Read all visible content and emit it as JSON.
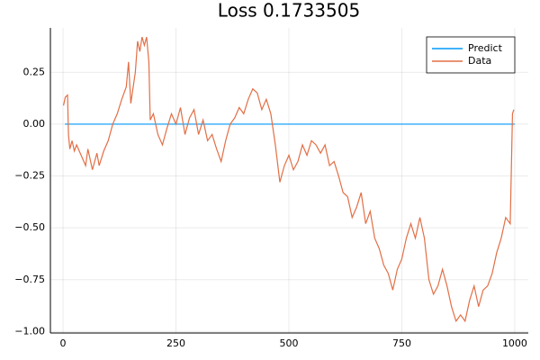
{
  "chart_data": {
    "type": "line",
    "title": "Loss 0.1733505",
    "xlim": [
      -28,
      1030
    ],
    "xticks": [
      0,
      250,
      500,
      750,
      1000
    ],
    "ylim": [
      -1.007,
      0.464
    ],
    "yticks": [
      {
        "value": 0.25,
        "label": "0.25"
      },
      {
        "value": 0,
        "label": "0.00"
      },
      {
        "value": -0.25,
        "label": "−0.25"
      },
      {
        "value": -0.5,
        "label": "−0.50"
      },
      {
        "value": -0.75,
        "label": "−0.75"
      },
      {
        "value": -1,
        "label": "−1.00"
      }
    ],
    "grid": true,
    "legend": "top-right",
    "series": [
      {
        "name": "Predict",
        "color": "#009af9",
        "x": [
          4,
          1000
        ],
        "values": [
          0,
          0
        ]
      },
      {
        "name": "Data",
        "color": "#e26f46",
        "x": [
          1,
          5,
          10,
          12,
          15,
          20,
          25,
          30,
          40,
          50,
          55,
          65,
          75,
          80,
          90,
          100,
          110,
          120,
          130,
          140,
          145,
          150,
          160,
          165,
          170,
          175,
          180,
          185,
          190,
          193,
          200,
          210,
          220,
          230,
          240,
          250,
          260,
          270,
          280,
          290,
          300,
          310,
          320,
          330,
          340,
          350,
          360,
          370,
          380,
          390,
          400,
          410,
          420,
          430,
          440,
          450,
          460,
          470,
          480,
          490,
          500,
          510,
          520,
          530,
          540,
          550,
          560,
          570,
          580,
          590,
          600,
          610,
          620,
          630,
          640,
          650,
          660,
          670,
          680,
          690,
          700,
          710,
          720,
          730,
          740,
          750,
          760,
          770,
          780,
          790,
          800,
          810,
          820,
          830,
          840,
          850,
          860,
          870,
          880,
          890,
          900,
          910,
          920,
          930,
          940,
          950,
          960,
          970,
          980,
          990,
          995,
          998
        ],
        "values": [
          0.09,
          0.13,
          0.14,
          -0.05,
          -0.12,
          -0.08,
          -0.13,
          -0.1,
          -0.15,
          -0.2,
          -0.12,
          -0.22,
          -0.14,
          -0.2,
          -0.13,
          -0.08,
          0,
          0.05,
          0.12,
          0.18,
          0.3,
          0.1,
          0.25,
          0.4,
          0.35,
          0.42,
          0.38,
          0.42,
          0.3,
          0.02,
          0.05,
          -0.05,
          -0.1,
          -0.02,
          0.05,
          0,
          0.08,
          -0.05,
          0.03,
          0.07,
          -0.05,
          0.02,
          -0.08,
          -0.05,
          -0.12,
          -0.18,
          -0.08,
          0,
          0.03,
          0.08,
          0.05,
          0.12,
          0.17,
          0.15,
          0.07,
          0.12,
          0.05,
          -0.1,
          -0.28,
          -0.2,
          -0.15,
          -0.22,
          -0.18,
          -0.1,
          -0.15,
          -0.08,
          -0.1,
          -0.14,
          -0.1,
          -0.2,
          -0.18,
          -0.25,
          -0.33,
          -0.35,
          -0.45,
          -0.4,
          -0.33,
          -0.48,
          -0.42,
          -0.55,
          -0.6,
          -0.68,
          -0.72,
          -0.8,
          -0.7,
          -0.65,
          -0.55,
          -0.48,
          -0.55,
          -0.45,
          -0.55,
          -0.75,
          -0.82,
          -0.78,
          -0.7,
          -0.78,
          -0.88,
          -0.95,
          -0.92,
          -0.95,
          -0.85,
          -0.78,
          -0.88,
          -0.8,
          -0.78,
          -0.72,
          -0.62,
          -0.55,
          -0.45,
          -0.48,
          0.05,
          0.07
        ]
      }
    ]
  }
}
